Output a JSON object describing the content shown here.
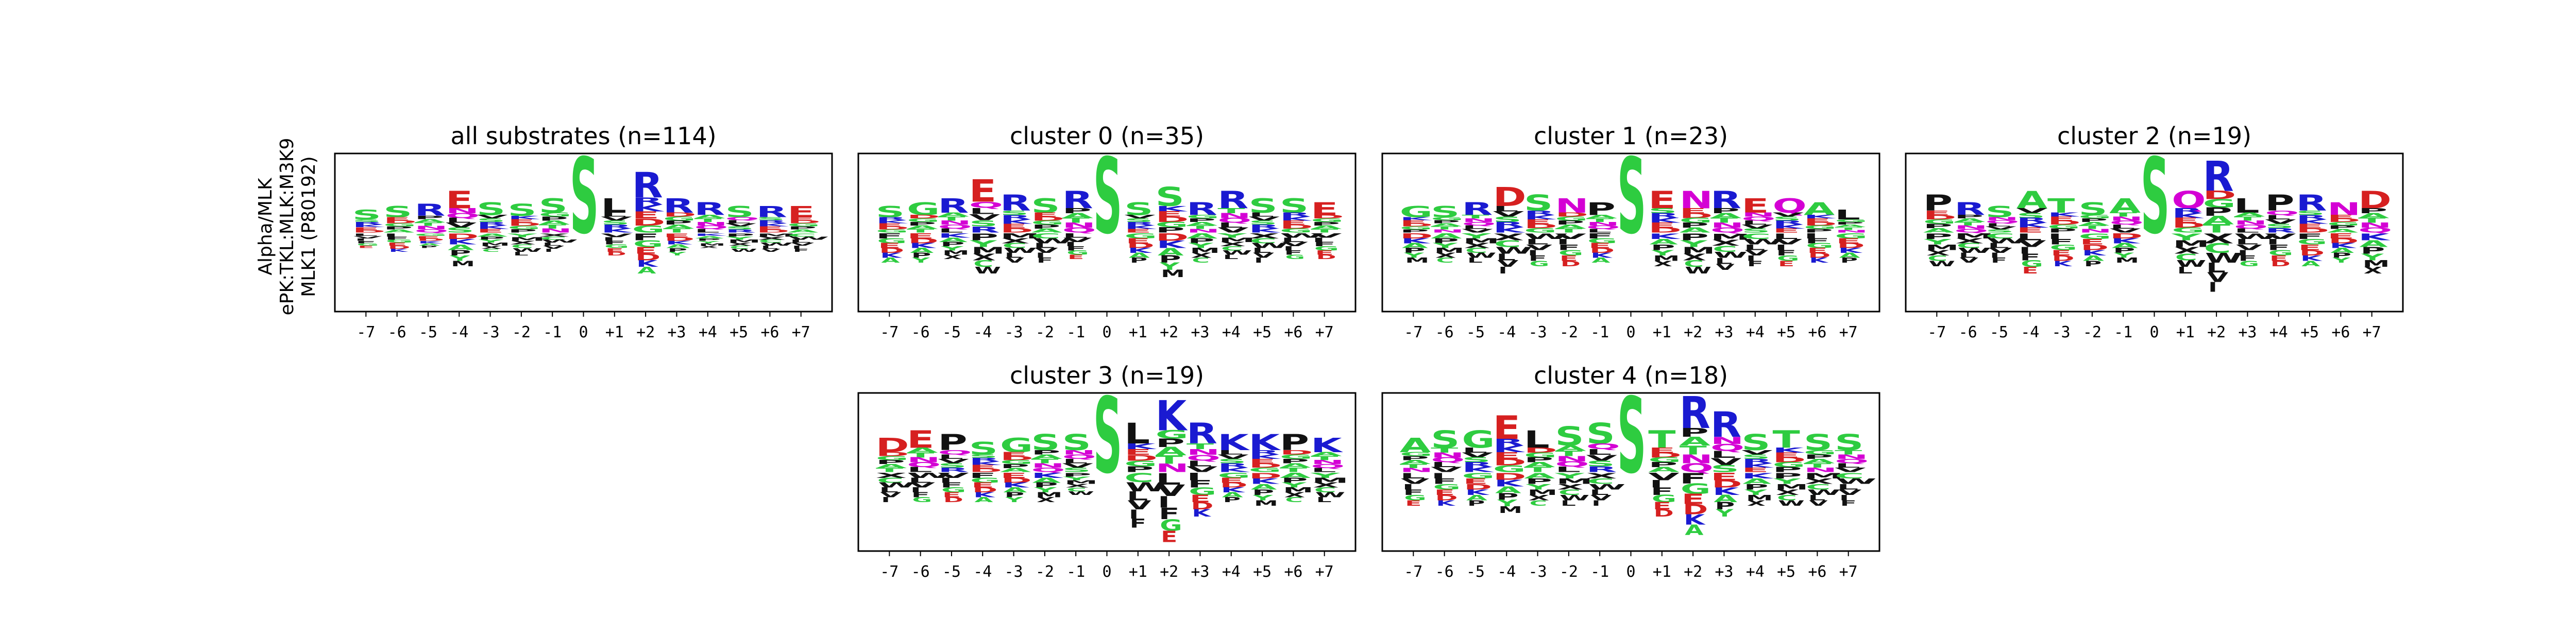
{
  "figure": {
    "ylabel_lines": [
      "Alpha/MLK",
      "ePK:TKL:MLK:M3K9",
      "MLK1 (P80192)"
    ]
  },
  "colors": {
    "S": "#2ecc40",
    "T": "#2ecc40",
    "G": "#2ecc40",
    "Y": "#2ecc40",
    "C": "#2ecc40",
    "A": "#2ecc40",
    "N": "#d400d4",
    "Q": "#d400d4",
    "K": "#1a1ad1",
    "R": "#1a1ad1",
    "H": "#1a1ad1",
    "D": "#d62020",
    "E": "#d62020",
    "P": "#111111",
    "L": "#111111",
    "I": "#111111",
    "V": "#111111",
    "M": "#111111",
    "F": "#111111",
    "W": "#111111",
    "X": "#111111"
  },
  "chart_data": [
    {
      "type": "sequence-logo",
      "title": "all substrates (n=114)",
      "positions": [
        "-7",
        "-6",
        "-5",
        "-4",
        "-3",
        "-2",
        "-1",
        "0",
        "+1",
        "+2",
        "+3",
        "+4",
        "+5",
        "+6",
        "+7"
      ],
      "center": "S",
      "top_residues": [
        "S",
        "S",
        "R",
        "E",
        "S",
        "S",
        "S",
        "S",
        "L",
        "R",
        "R",
        "R",
        "S",
        "R",
        "E"
      ],
      "top_heights": [
        0.3,
        0.35,
        0.38,
        0.55,
        0.4,
        0.38,
        0.45,
        1.0,
        0.45,
        0.8,
        0.45,
        0.4,
        0.35,
        0.35,
        0.35
      ],
      "bottom_depth": [
        0.2,
        0.25,
        0.2,
        0.45,
        0.25,
        0.3,
        0.25,
        0.0,
        0.3,
        0.55,
        0.3,
        0.2,
        0.25,
        0.25,
        0.25
      ]
    },
    {
      "type": "sequence-logo",
      "title": "cluster 0 (n=35)",
      "positions": [
        "-7",
        "-6",
        "-5",
        "-4",
        "-3",
        "-2",
        "-1",
        "0",
        "+1",
        "+2",
        "+3",
        "+4",
        "+5",
        "+6",
        "+7"
      ],
      "center": "S",
      "top_residues": [
        "S",
        "G",
        "R",
        "E",
        "R",
        "S",
        "R",
        "S",
        "S",
        "S",
        "R",
        "R",
        "S",
        "S",
        "E"
      ],
      "top_heights": [
        0.35,
        0.4,
        0.45,
        0.7,
        0.5,
        0.45,
        0.55,
        1.0,
        0.4,
        0.6,
        0.4,
        0.55,
        0.45,
        0.45,
        0.4
      ],
      "bottom_depth": [
        0.4,
        0.4,
        0.35,
        0.55,
        0.4,
        0.4,
        0.35,
        0.0,
        0.4,
        0.6,
        0.4,
        0.35,
        0.4,
        0.35,
        0.35
      ]
    },
    {
      "type": "sequence-logo",
      "title": "cluster 1 (n=23)",
      "positions": [
        "-7",
        "-6",
        "-5",
        "-4",
        "-3",
        "-2",
        "-1",
        "0",
        "+1",
        "+2",
        "+3",
        "+4",
        "+5",
        "+6",
        "+7"
      ],
      "center": "S",
      "top_residues": [
        "G",
        "S",
        "R",
        "D",
        "S",
        "N",
        "P",
        "S",
        "E",
        "N",
        "R",
        "E",
        "Q",
        "A",
        "L"
      ],
      "top_heights": [
        0.35,
        0.35,
        0.4,
        0.6,
        0.5,
        0.45,
        0.4,
        1.0,
        0.55,
        0.55,
        0.55,
        0.45,
        0.45,
        0.4,
        0.3
      ],
      "bottom_depth": [
        0.4,
        0.4,
        0.4,
        0.55,
        0.45,
        0.45,
        0.4,
        0.0,
        0.45,
        0.55,
        0.5,
        0.45,
        0.45,
        0.4,
        0.4
      ]
    },
    {
      "type": "sequence-logo",
      "title": "cluster 2 (n=19)",
      "positions": [
        "-7",
        "-6",
        "-5",
        "-4",
        "-3",
        "-2",
        "-1",
        "0",
        "+1",
        "+2",
        "+3",
        "+4",
        "+5",
        "+6",
        "+7"
      ],
      "center": "S",
      "top_residues": [
        "P",
        "R",
        "S",
        "A",
        "T",
        "S",
        "A",
        "S",
        "Q",
        "R",
        "L",
        "P",
        "R",
        "N",
        "D"
      ],
      "top_heights": [
        0.5,
        0.4,
        0.35,
        0.55,
        0.45,
        0.4,
        0.45,
        1.0,
        0.55,
        0.95,
        0.45,
        0.5,
        0.5,
        0.4,
        0.55
      ],
      "bottom_depth": [
        0.45,
        0.4,
        0.4,
        0.55,
        0.45,
        0.45,
        0.4,
        0.0,
        0.55,
        0.8,
        0.45,
        0.45,
        0.45,
        0.4,
        0.55
      ]
    },
    {
      "type": "sequence-logo",
      "title": "cluster 3 (n=19)",
      "positions": [
        "-7",
        "-6",
        "-5",
        "-4",
        "-3",
        "-2",
        "-1",
        "0",
        "+1",
        "+2",
        "+3",
        "+4",
        "+5",
        "+6",
        "+7"
      ],
      "center": "S",
      "top_residues": [
        "D",
        "E",
        "P",
        "S",
        "G",
        "S",
        "S",
        "S",
        "L",
        "K",
        "R",
        "K",
        "K",
        "P",
        "K"
      ],
      "top_heights": [
        0.45,
        0.55,
        0.5,
        0.4,
        0.45,
        0.5,
        0.5,
        1.0,
        0.65,
        0.95,
        0.65,
        0.5,
        0.5,
        0.5,
        0.45
      ],
      "bottom_depth": [
        0.4,
        0.4,
        0.4,
        0.4,
        0.4,
        0.4,
        0.3,
        0.0,
        0.75,
        0.95,
        0.6,
        0.4,
        0.45,
        0.4,
        0.4
      ]
    },
    {
      "type": "sequence-logo",
      "title": "cluster 4 (n=18)",
      "positions": [
        "-7",
        "-6",
        "-5",
        "-4",
        "-3",
        "-2",
        "-1",
        "0",
        "+1",
        "+2",
        "+3",
        "+4",
        "+5",
        "+6",
        "+7"
      ],
      "center": "S",
      "top_residues": [
        "A",
        "S",
        "G",
        "E",
        "L",
        "S",
        "S",
        "S",
        "T",
        "R",
        "R",
        "S",
        "T",
        "S",
        "S"
      ],
      "top_heights": [
        0.45,
        0.55,
        0.55,
        0.75,
        0.55,
        0.6,
        0.65,
        1.0,
        0.55,
        1.0,
        0.8,
        0.5,
        0.55,
        0.5,
        0.5
      ],
      "bottom_depth": [
        0.45,
        0.45,
        0.45,
        0.55,
        0.45,
        0.45,
        0.45,
        0.0,
        0.6,
        0.85,
        0.6,
        0.45,
        0.45,
        0.45,
        0.45
      ]
    }
  ]
}
